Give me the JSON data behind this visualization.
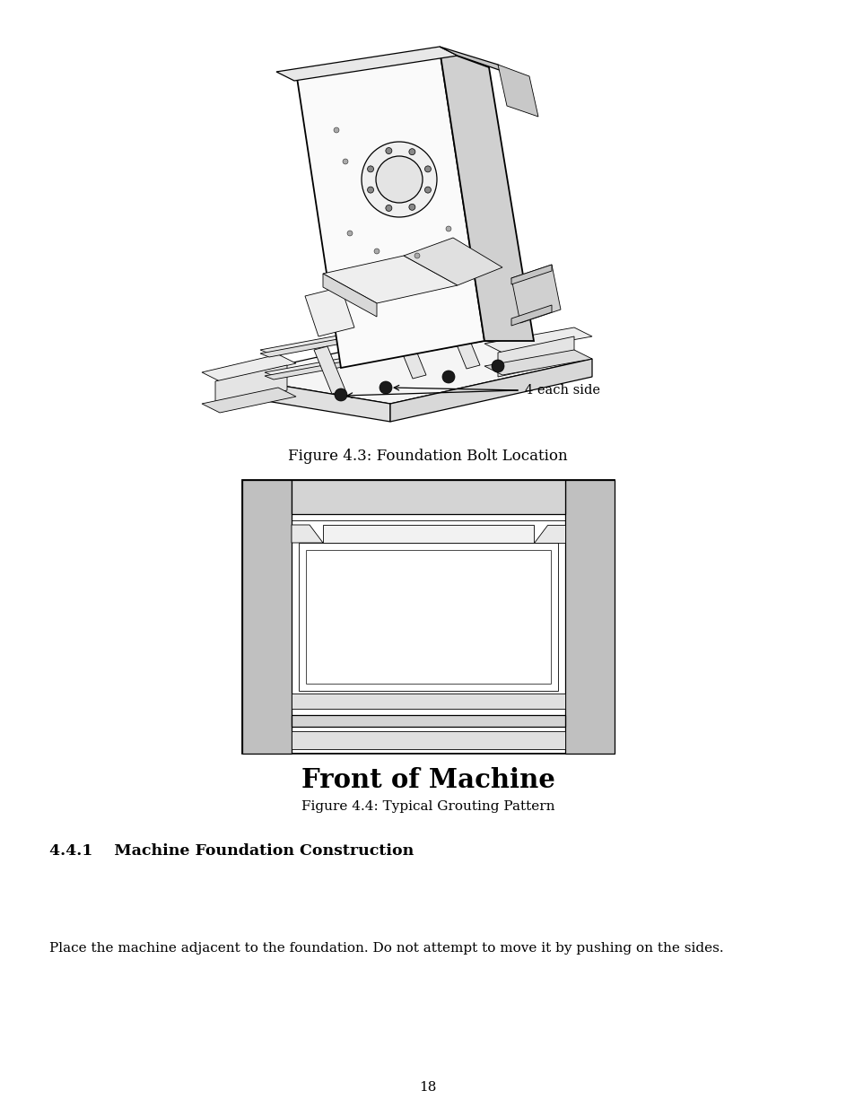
{
  "page_bg": "#ffffff",
  "fig4_3_caption": "Figure 4.3: Foundation Bolt Location",
  "fig4_4_label": "Front of Machine",
  "fig4_4_caption": "Figure 4.4: Typical Grouting Pattern",
  "section_title": "4.4.1    Machine Foundation Construction",
  "body_text": "Place the machine adjacent to the foundation. Do not attempt to move it by pushing on the sides.",
  "page_number": "18",
  "gray_fill": "#c0c0c0",
  "light_gray": "#d4d4d4",
  "dark_line": "#000000",
  "white": "#ffffff",
  "near_white": "#f2f2f2"
}
